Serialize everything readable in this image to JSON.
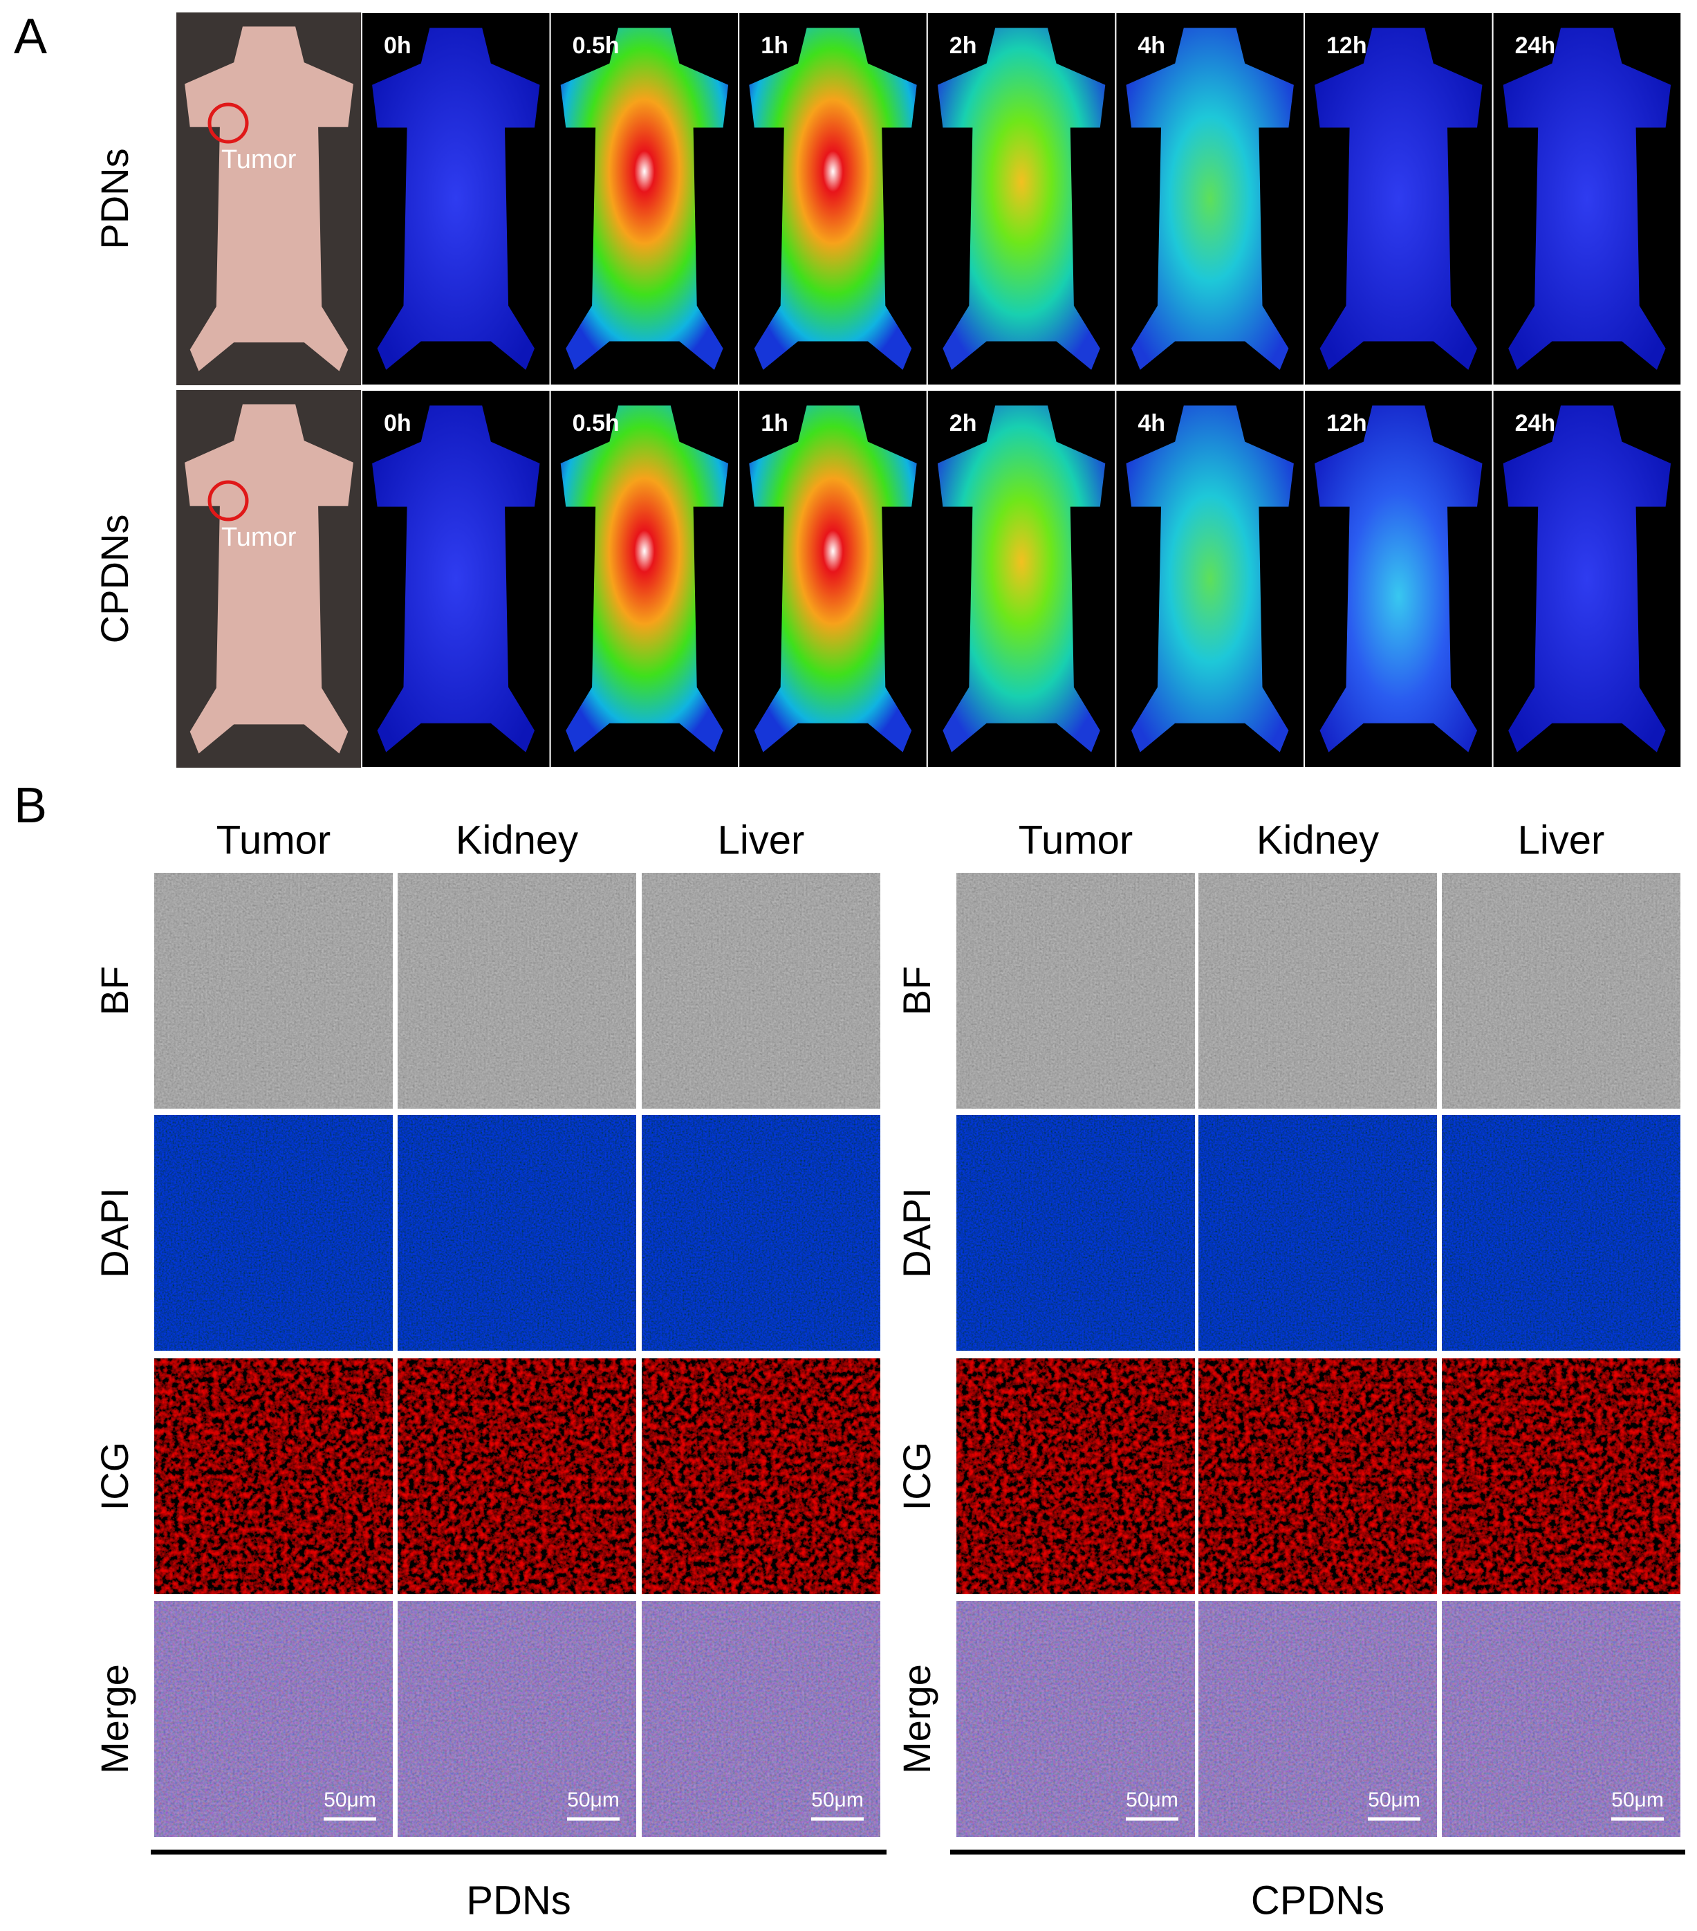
{
  "panel_a": {
    "label": "A",
    "rows": [
      {
        "name": "PDNs",
        "photo_label": "Tumor",
        "times": [
          "0h",
          "0.5h",
          "1h",
          "2h",
          "4h",
          "12h",
          "24h"
        ]
      },
      {
        "name": "CPDNs",
        "photo_label": "Tumor",
        "times": [
          "0h",
          "0.5h",
          "1h",
          "2h",
          "4h",
          "12h",
          "24h"
        ]
      }
    ]
  },
  "panel_b": {
    "label": "B",
    "groups": [
      {
        "name": "PDNs",
        "columns": [
          "Tumor",
          "Kidney",
          "Liver"
        ],
        "rows": [
          "BF",
          "DAPI",
          "ICG",
          "Merge"
        ],
        "scale_bars": [
          "50μm",
          "50μm",
          "50μm"
        ]
      },
      {
        "name": "CPDNs",
        "columns": [
          "Tumor",
          "Kidney",
          "Liver"
        ],
        "rows": [
          "BF",
          "DAPI",
          "ICG",
          "Merge"
        ],
        "scale_bars": [
          "50μm",
          "50μm",
          "50μm"
        ]
      }
    ]
  }
}
